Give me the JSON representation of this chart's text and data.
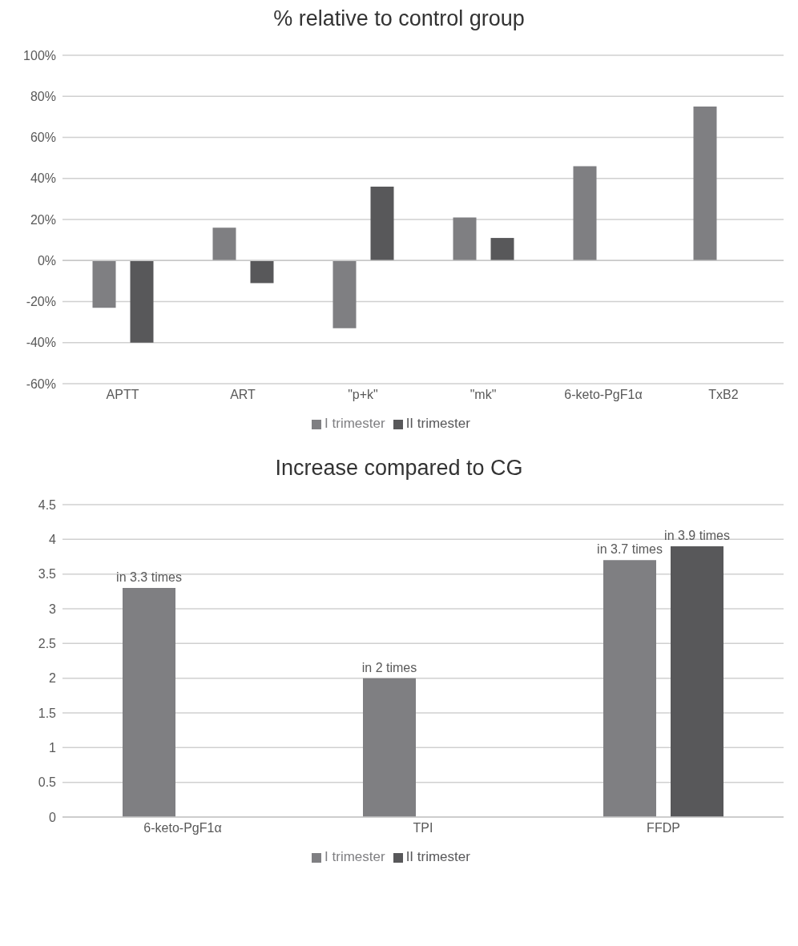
{
  "chart_data": [
    {
      "type": "bar",
      "title": "% relative to control group",
      "categories": [
        "APTT",
        "ART",
        "\"p+k\"",
        "\"mk\"",
        "6-keto-PgF1α",
        "TxB2"
      ],
      "series": [
        {
          "name": "I trimester",
          "color": "#7f7f82",
          "values": [
            -23,
            16,
            -33,
            21,
            46,
            75
          ]
        },
        {
          "name": "II trimester",
          "color": "#58585a",
          "values": [
            -40,
            -11,
            36,
            11,
            null,
            null
          ]
        }
      ],
      "ylim": [
        -60,
        100
      ],
      "yticks": [
        {
          "value": -60,
          "label": "-60%"
        },
        {
          "value": -40,
          "label": "-40%"
        },
        {
          "value": -20,
          "label": "-20%"
        },
        {
          "value": 0,
          "label": "0%"
        },
        {
          "value": 20,
          "label": "20%"
        },
        {
          "value": 40,
          "label": "40%"
        },
        {
          "value": 60,
          "label": "60%"
        },
        {
          "value": 80,
          "label": "80%"
        },
        {
          "value": 100,
          "label": "100%"
        }
      ],
      "grid": "y",
      "legend": "bottom"
    },
    {
      "type": "bar",
      "title": "Increase compared to CG",
      "categories": [
        "6-keto-PgF1α",
        "TPI",
        "FFDP"
      ],
      "series": [
        {
          "name": "I trimester",
          "color": "#7f7f82",
          "values": [
            3.3,
            2,
            3.7
          ],
          "value_labels": [
            "in 3.3 times",
            "in 2 times",
            "in 3.7 times"
          ]
        },
        {
          "name": "II trimester",
          "color": "#58585a",
          "values": [
            null,
            null,
            3.9
          ],
          "value_labels": [
            null,
            null,
            "in 3.9 times"
          ]
        }
      ],
      "ylim": [
        0,
        4.5
      ],
      "yticks": [
        0,
        0.5,
        1,
        1.5,
        2,
        2.5,
        3,
        3.5,
        4,
        4.5
      ],
      "grid": "y",
      "legend": "bottom"
    }
  ]
}
